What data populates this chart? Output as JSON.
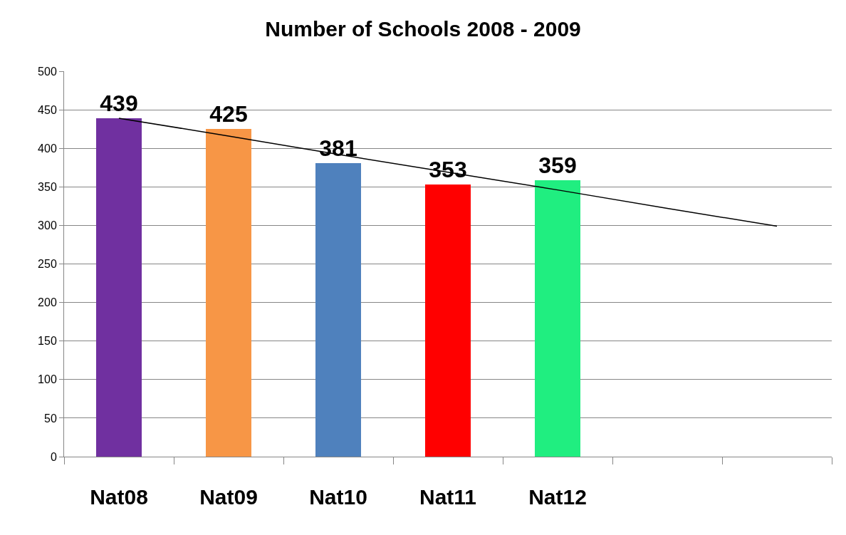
{
  "chart_data": {
    "type": "bar",
    "title": "Number of Schools 2008 - 2009",
    "categories": [
      "Nat08",
      "Nat09",
      "Nat10",
      "Nat11",
      "Nat12",
      null,
      null
    ],
    "series": [
      {
        "values": [
          439,
          425,
          381,
          353,
          359,
          null,
          null
        ],
        "colors": [
          "#7030a0",
          "#f79646",
          "#4f81bd",
          "#ff0000",
          "#20ee80",
          null,
          null
        ],
        "value_labels": [
          "439",
          "425",
          "381",
          "353",
          "359",
          null,
          null
        ]
      },
      {
        "type": "line",
        "color": "#000000",
        "values": [
          439,
          416,
          392,
          369,
          346,
          322,
          299
        ]
      }
    ],
    "ylim": [
      0,
      500
    ],
    "yticks": [
      0,
      50,
      100,
      150,
      200,
      250,
      300,
      350,
      400,
      450,
      500
    ],
    "grid": "y",
    "marker": "none",
    "line_style": "solid"
  }
}
